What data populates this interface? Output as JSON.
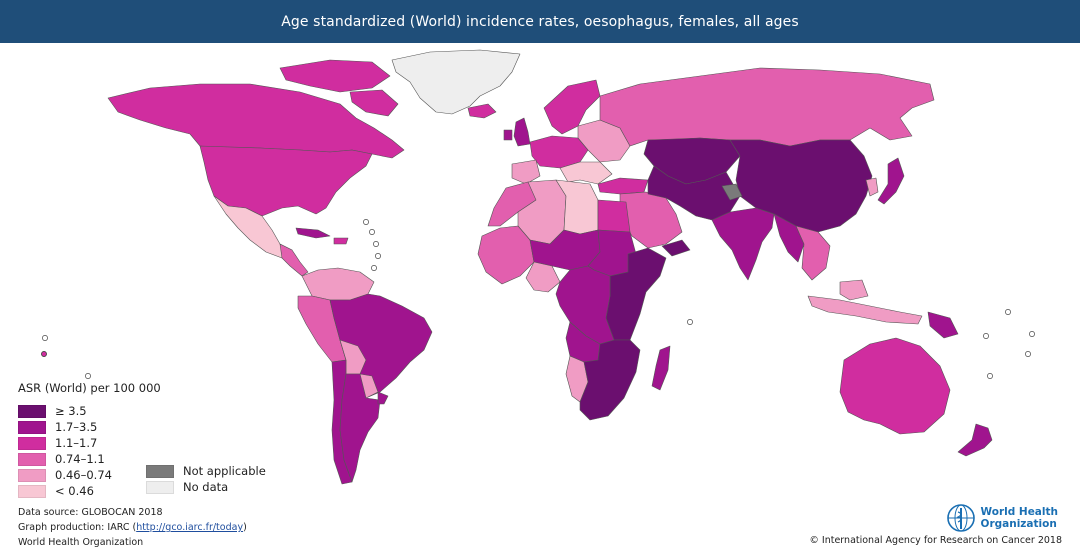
{
  "title": "Age standardized (World) incidence rates, oesophagus, females, all ages",
  "colors": {
    "header": "#1f4e79",
    "c1": "#6b0f6f",
    "c2": "#a0148e",
    "c3": "#d02d9f",
    "c4": "#e25fae",
    "c5": "#f09cc4",
    "c6": "#f8c7d4",
    "not_applicable": "#7a7a7a",
    "no_data": "#eeeeee"
  },
  "legend": {
    "title": "ASR (World) per 100 000",
    "items": [
      {
        "label": "≥ 3.5",
        "color": "#6b0f6f"
      },
      {
        "label": "1.7–3.5",
        "color": "#a0148e"
      },
      {
        "label": "1.1–1.7",
        "color": "#d02d9f"
      },
      {
        "label": "0.74–1.1",
        "color": "#e25fae"
      },
      {
        "label": "0.46–0.74",
        "color": "#f09cc4"
      },
      {
        "label": "< 0.46",
        "color": "#f8c7d4"
      }
    ],
    "extra": [
      {
        "label": "Not applicable",
        "color": "#7a7a7a"
      },
      {
        "label": "No data",
        "color": "#eeeeee"
      }
    ]
  },
  "footer": {
    "source": "Data source: GLOBOCAN 2018",
    "production_prefix": "Graph production: IARC (",
    "production_link": "http://gco.iarc.fr/today",
    "production_suffix": ")",
    "org": "World Health Organization"
  },
  "copyright": "© International Agency for Research on Cancer 2018",
  "who_logo": {
    "line1": "World Health",
    "line2": "Organization",
    "icon": "who-emblem-icon"
  },
  "map_regions": [
    {
      "name": "Greenland",
      "class": "no_data"
    },
    {
      "name": "Canada",
      "class": "1.1–1.7"
    },
    {
      "name": "USA",
      "class": "1.1–1.7"
    },
    {
      "name": "Mexico",
      "class": "< 0.46"
    },
    {
      "name": "Central America",
      "class": "0.74–1.1"
    },
    {
      "name": "Caribbean",
      "class": "1.7–3.5"
    },
    {
      "name": "Colombia / Venezuela",
      "class": "0.46–0.74"
    },
    {
      "name": "Peru",
      "class": "0.74–1.1"
    },
    {
      "name": "Ecuador",
      "class": "0.74–1.1"
    },
    {
      "name": "Brazil",
      "class": "1.7–3.5"
    },
    {
      "name": "Bolivia",
      "class": "0.46–0.74"
    },
    {
      "name": "Paraguay",
      "class": "0.46–0.74"
    },
    {
      "name": "Chile",
      "class": "1.7–3.5"
    },
    {
      "name": "Argentina",
      "class": "1.7–3.5"
    },
    {
      "name": "Uruguay",
      "class": "1.7–3.5"
    },
    {
      "name": "Iceland",
      "class": "1.1–1.7"
    },
    {
      "name": "United Kingdom / Ireland",
      "class": "1.7–3.5"
    },
    {
      "name": "Scandinavia",
      "class": "1.1–1.7"
    },
    {
      "name": "Western Europe",
      "class": "1.1–1.7"
    },
    {
      "name": "Eastern Europe",
      "class": "0.46–0.74"
    },
    {
      "name": "Southern Europe",
      "class": "< 0.46"
    },
    {
      "name": "Russia",
      "class": "0.74–1.1"
    },
    {
      "name": "Kazakhstan / Central Asia",
      "class": "≥ 3.5"
    },
    {
      "name": "China / Mongolia",
      "class": "≥ 3.5"
    },
    {
      "name": "Iran / Turkmenistan",
      "class": "≥ 3.5"
    },
    {
      "name": "Pakistan",
      "class": "≥ 3.5"
    },
    {
      "name": "Kashmir",
      "class": "Not applicable"
    },
    {
      "name": "India",
      "class": "1.7–3.5"
    },
    {
      "name": "Myanmar / Bangladesh",
      "class": "1.7–3.5"
    },
    {
      "name": "Southeast Asia",
      "class": "0.74–1.1"
    },
    {
      "name": "Japan",
      "class": "1.7–3.5"
    },
    {
      "name": "Korea",
      "class": "0.46–0.74"
    },
    {
      "name": "Indonesia",
      "class": "0.46–0.74"
    },
    {
      "name": "Papua New Guinea",
      "class": "1.7–3.5"
    },
    {
      "name": "Australia",
      "class": "1.1–1.7"
    },
    {
      "name": "New Zealand",
      "class": "1.7–3.5"
    },
    {
      "name": "Turkey",
      "class": "1.1–1.7"
    },
    {
      "name": "Middle East / Arabia",
      "class": "0.74–1.1"
    },
    {
      "name": "Yemen / Oman",
      "class": "≥ 3.5"
    },
    {
      "name": "Morocco / Western Sahara",
      "class": "0.74–1.1"
    },
    {
      "name": "Algeria",
      "class": "0.46–0.74"
    },
    {
      "name": "Libya",
      "class": "< 0.46"
    },
    {
      "name": "Egypt",
      "class": "1.1–1.7"
    },
    {
      "name": "West Africa",
      "class": "0.74–1.1"
    },
    {
      "name": "Sahel",
      "class": "1.7–3.5"
    },
    {
      "name": "Nigeria",
      "class": "0.46–0.74"
    },
    {
      "name": "Sudan",
      "class": "1.7–3.5"
    },
    {
      "name": "East Africa",
      "class": "≥ 3.5"
    },
    {
      "name": "Central Africa",
      "class": "1.7–3.5"
    },
    {
      "name": "Angola",
      "class": "1.7–3.5"
    },
    {
      "name": "Namibia",
      "class": "0.46–0.74"
    },
    {
      "name": "Southern Africa",
      "class": "≥ 3.5"
    },
    {
      "name": "Madagascar",
      "class": "1.7–3.5"
    }
  ]
}
